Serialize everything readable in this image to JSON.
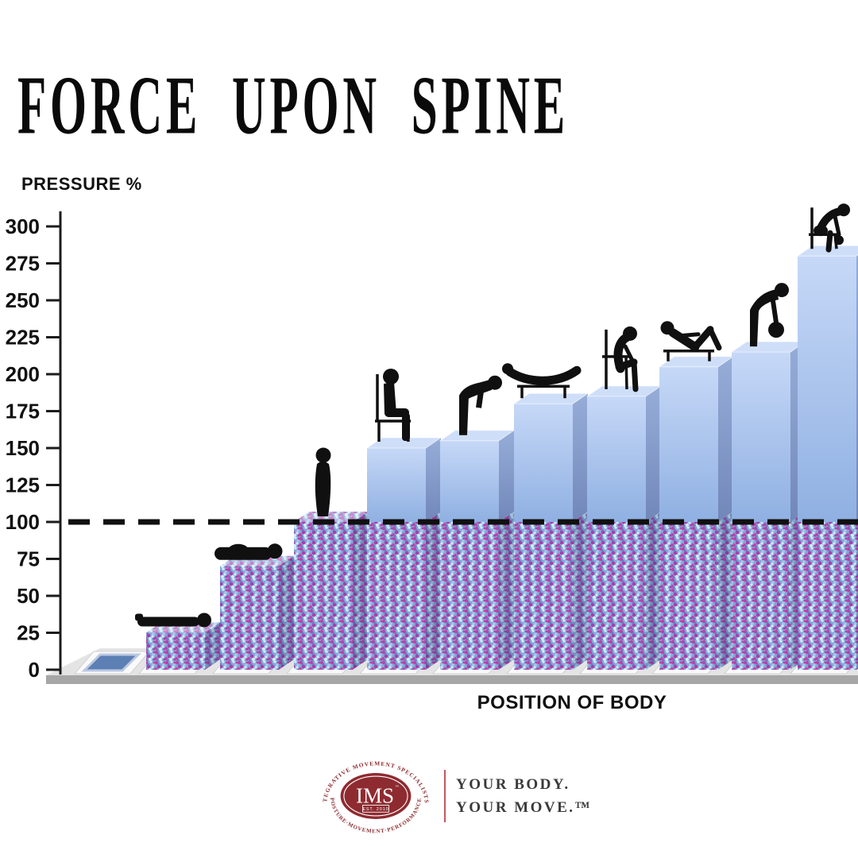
{
  "header": {
    "title": "FORCE UPON SPINE"
  },
  "chart_data": {
    "type": "bar",
    "title": "FORCE UPON SPINE",
    "xlabel": "POSITION OF BODY",
    "ylabel": "PRESSURE %",
    "ylim": [
      0,
      300
    ],
    "ytick_step": 25,
    "yticks": [
      0,
      25,
      50,
      75,
      100,
      125,
      150,
      175,
      200,
      225,
      250,
      275,
      300
    ],
    "reference_line": 100,
    "grid": false,
    "legend": "none",
    "categories": [
      "flat base tile (no load)",
      "lying on back",
      "lying on side",
      "standing upright",
      "sitting upright on chair",
      "standing bent forward",
      "prone back extension on bench",
      "sitting slouched forward",
      "sit-up on bench",
      "standing bent forward lifting weight",
      "sitting bent forward lifting weight"
    ],
    "values": [
      0,
      25,
      70,
      100,
      150,
      155,
      180,
      185,
      205,
      215,
      280
    ],
    "positions": [
      {
        "figure": "none",
        "label": "flat base tile (no load)",
        "value": 0
      },
      {
        "figure": "lying-supine",
        "label": "lying on back",
        "value": 25
      },
      {
        "figure": "lying-side",
        "label": "lying on side",
        "value": 70
      },
      {
        "figure": "standing",
        "label": "standing upright",
        "value": 100
      },
      {
        "figure": "sitting-chair",
        "label": "sitting upright on chair",
        "value": 150
      },
      {
        "figure": "standing-bent",
        "label": "standing bent forward",
        "value": 155
      },
      {
        "figure": "prone-extension-bench",
        "label": "prone back extension on bench",
        "value": 180
      },
      {
        "figure": "sitting-slouched",
        "label": "sitting slouched forward",
        "value": 185
      },
      {
        "figure": "situp-bench",
        "label": "sit-up on bench",
        "value": 205
      },
      {
        "figure": "standing-bent-weight",
        "label": "standing bent forward lifting weight",
        "value": 215
      },
      {
        "figure": "sitting-bent-weight",
        "label": "sitting bent forward lifting weight",
        "value": 280
      }
    ]
  },
  "logo": {
    "name": "IMS",
    "tm": "™",
    "est": "EST. 2010",
    "arc_top": "INTEGRATIVE MOVEMENT SPECIALISTS™",
    "arc_bottom": "POSTURE·MOVEMENT·PERFORMANCE",
    "tagline_line1": "YOUR BODY.",
    "tagline_line2": "YOUR MOVE.™",
    "brand_color": "#8e2b30"
  },
  "colors": {
    "bar_face_top": "#c6d8f7",
    "bar_face_bottom": "#8fb0e2",
    "bar_side_top": "#97add8",
    "bar_side_bottom": "#7187b9",
    "bar_top_face": "#cfdef8",
    "speckle_base": "#85a7d7",
    "speckle_magenta": "#c23ca8",
    "speckle_magenta2": "#ab3bad",
    "speckle_light": "#d3ecf8",
    "speckle_blue_light": "#a7c6ee",
    "speckle_blue_dark": "#5f7fc0",
    "floor": "#e4e4e4",
    "floor_edge": "#a6a6a6",
    "tile": "#fafafa",
    "tile_blue": "#5c7fb4",
    "ink": "#101010",
    "brand": "#8e2b30"
  }
}
